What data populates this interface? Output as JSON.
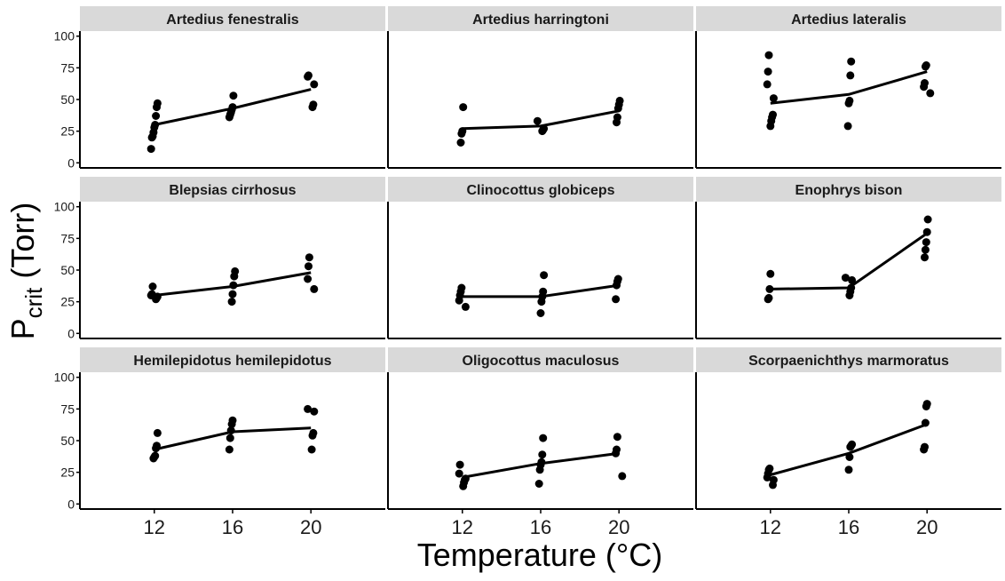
{
  "chart_data": {
    "type": "scatter",
    "xlabel": "Temperature (°C)",
    "ylabel": {
      "main": "P",
      "sub": "crit",
      "rest": " (Torr)"
    },
    "x_ticks": [
      "12",
      "16",
      "20"
    ],
    "x_values": [
      12,
      16,
      20
    ],
    "y_ticks": [
      "0",
      "25",
      "50",
      "75",
      "100"
    ],
    "xlim": [
      8.2,
      23.8
    ],
    "ylim": [
      -4,
      104
    ],
    "grid": false,
    "legend": "none",
    "colors": {
      "points": "#000000",
      "line": "#000000",
      "strip": "#d9d9d9"
    },
    "panels": [
      {
        "title": "Artedius fenestralis",
        "points": [
          [
            12,
            11
          ],
          [
            12,
            20
          ],
          [
            12,
            21
          ],
          [
            12,
            24
          ],
          [
            12,
            28
          ],
          [
            12,
            30
          ],
          [
            12,
            37
          ],
          [
            12,
            44
          ],
          [
            12,
            47
          ],
          [
            16,
            36
          ],
          [
            16,
            38
          ],
          [
            16,
            40
          ],
          [
            16,
            42
          ],
          [
            16,
            44
          ],
          [
            16,
            53
          ],
          [
            20,
            44
          ],
          [
            20,
            46
          ],
          [
            20,
            62
          ],
          [
            20,
            68
          ],
          [
            20,
            69
          ]
        ],
        "line": [
          30,
          43,
          58
        ]
      },
      {
        "title": "Artedius harringtoni",
        "points": [
          [
            12,
            16
          ],
          [
            12,
            23
          ],
          [
            12,
            25
          ],
          [
            12,
            44
          ],
          [
            16,
            25
          ],
          [
            16,
            26
          ],
          [
            16,
            27
          ],
          [
            16,
            33
          ],
          [
            20,
            32
          ],
          [
            20,
            36
          ],
          [
            20,
            43
          ],
          [
            20,
            46
          ],
          [
            20,
            49
          ]
        ],
        "line": [
          27,
          29,
          41
        ]
      },
      {
        "title": "Artedius lateralis",
        "points": [
          [
            12,
            29
          ],
          [
            12,
            33
          ],
          [
            12,
            36
          ],
          [
            12,
            38
          ],
          [
            12,
            51
          ],
          [
            12,
            62
          ],
          [
            12,
            72
          ],
          [
            12,
            85
          ],
          [
            16,
            29
          ],
          [
            16,
            47
          ],
          [
            16,
            49
          ],
          [
            16,
            69
          ],
          [
            16,
            80
          ],
          [
            20,
            55
          ],
          [
            20,
            60
          ],
          [
            20,
            63
          ],
          [
            20,
            76
          ],
          [
            20,
            77
          ]
        ],
        "line": [
          47,
          54,
          72
        ]
      },
      {
        "title": "Blepsias cirrhosus",
        "points": [
          [
            12,
            27
          ],
          [
            12,
            28
          ],
          [
            12,
            29
          ],
          [
            12,
            30
          ],
          [
            12,
            31
          ],
          [
            12,
            37
          ],
          [
            16,
            25
          ],
          [
            16,
            31
          ],
          [
            16,
            38
          ],
          [
            16,
            45
          ],
          [
            16,
            49
          ],
          [
            20,
            35
          ],
          [
            20,
            43
          ],
          [
            20,
            53
          ],
          [
            20,
            60
          ]
        ],
        "line": [
          30,
          37,
          48
        ]
      },
      {
        "title": "Clinocottus globiceps",
        "points": [
          [
            12,
            21
          ],
          [
            12,
            26
          ],
          [
            12,
            30
          ],
          [
            12,
            33
          ],
          [
            12,
            36
          ],
          [
            16,
            16
          ],
          [
            16,
            25
          ],
          [
            16,
            29
          ],
          [
            16,
            33
          ],
          [
            16,
            46
          ],
          [
            20,
            27
          ],
          [
            20,
            38
          ],
          [
            20,
            41
          ],
          [
            20,
            43
          ]
        ],
        "line": [
          29,
          29,
          38
        ]
      },
      {
        "title": "Enophrys bison",
        "points": [
          [
            12,
            27
          ],
          [
            12,
            28
          ],
          [
            12,
            35
          ],
          [
            12,
            47
          ],
          [
            16,
            30
          ],
          [
            16,
            33
          ],
          [
            16,
            36
          ],
          [
            16,
            42
          ],
          [
            16,
            44
          ],
          [
            20,
            60
          ],
          [
            20,
            66
          ],
          [
            20,
            72
          ],
          [
            20,
            80
          ],
          [
            20,
            90
          ]
        ],
        "line": [
          35,
          36,
          79
        ]
      },
      {
        "title": "Hemilepidotus hemilepidotus",
        "points": [
          [
            12,
            36
          ],
          [
            12,
            37
          ],
          [
            12,
            38
          ],
          [
            12,
            44
          ],
          [
            12,
            46
          ],
          [
            12,
            56
          ],
          [
            16,
            43
          ],
          [
            16,
            52
          ],
          [
            16,
            58
          ],
          [
            16,
            63
          ],
          [
            16,
            66
          ],
          [
            20,
            43
          ],
          [
            20,
            54
          ],
          [
            20,
            56
          ],
          [
            20,
            73
          ],
          [
            20,
            75
          ]
        ],
        "line": [
          43,
          57,
          60
        ]
      },
      {
        "title": "Oligocottus maculosus",
        "points": [
          [
            12,
            14
          ],
          [
            12,
            17
          ],
          [
            12,
            19
          ],
          [
            12,
            20
          ],
          [
            12,
            24
          ],
          [
            12,
            31
          ],
          [
            16,
            16
          ],
          [
            16,
            27
          ],
          [
            16,
            31
          ],
          [
            16,
            33
          ],
          [
            16,
            39
          ],
          [
            16,
            52
          ],
          [
            20,
            22
          ],
          [
            20,
            40
          ],
          [
            20,
            43
          ],
          [
            20,
            53
          ]
        ],
        "line": [
          21,
          32,
          40
        ]
      },
      {
        "title": "Scorpaenichthys marmoratus",
        "points": [
          [
            12,
            15
          ],
          [
            12,
            19
          ],
          [
            12,
            21
          ],
          [
            12,
            24
          ],
          [
            12,
            27
          ],
          [
            12,
            28
          ],
          [
            16,
            27
          ],
          [
            16,
            37
          ],
          [
            16,
            45
          ],
          [
            16,
            46
          ],
          [
            16,
            47
          ],
          [
            20,
            43
          ],
          [
            20,
            45
          ],
          [
            20,
            64
          ],
          [
            20,
            77
          ],
          [
            20,
            79
          ]
        ],
        "line": [
          23,
          40,
          63
        ]
      }
    ]
  }
}
